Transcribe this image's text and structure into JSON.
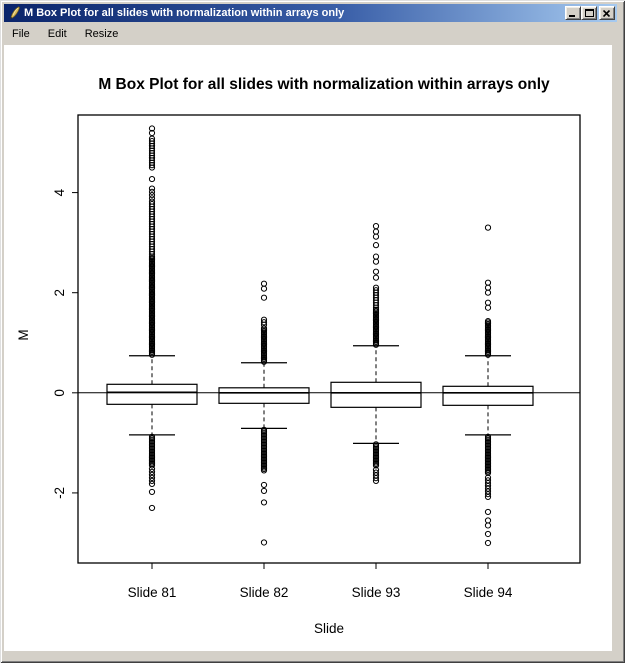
{
  "window": {
    "title": "M Box Plot for all slides with normalization within arrays only",
    "icon": "graphics-pen-icon",
    "controls": {
      "minimize": "minimize",
      "maximize": "maximize",
      "close": "close"
    }
  },
  "menu": {
    "items": [
      {
        "label": "File"
      },
      {
        "label": "Edit"
      },
      {
        "label": "Resize"
      }
    ]
  },
  "chart_data": {
    "type": "boxplot",
    "title": "M Box Plot for all slides with normalization within arrays only",
    "xlabel": "Slide",
    "ylabel": "M",
    "ylim": [
      -3.4,
      5.55
    ],
    "yticks": [
      -2,
      0,
      2,
      4
    ],
    "reference_line_y": 0,
    "grid": false,
    "categories": [
      "Slide 81",
      "Slide 82",
      "Slide 93",
      "Slide 94"
    ],
    "series": [
      {
        "name": "Slide 81",
        "median": 0.01,
        "q1": -0.23,
        "q3": 0.17,
        "whisker_low": -0.84,
        "whisker_high": 0.74,
        "outlier_runs": [
          [
            0.76,
            2.7,
            0.028
          ],
          [
            2.72,
            3.78,
            0.05
          ],
          [
            3.82,
            4.1,
            0.065
          ],
          [
            4.5,
            5.08,
            0.048
          ],
          [
            -1.45,
            -0.86,
            0.03
          ],
          [
            -1.82,
            -1.5,
            0.06
          ]
        ],
        "outliers": [
          4.27,
          5.19,
          5.28,
          -1.98,
          -2.3
        ]
      },
      {
        "name": "Slide 82",
        "median": 0.0,
        "q1": -0.21,
        "q3": 0.1,
        "whisker_low": -0.71,
        "whisker_high": 0.6,
        "outlier_runs": [
          [
            0.62,
            1.3,
            0.028
          ],
          [
            1.36,
            1.46,
            0.05
          ],
          [
            -1.55,
            -0.72,
            0.03
          ]
        ],
        "outliers": [
          1.9,
          2.08,
          2.18,
          -1.84,
          -1.96,
          -2.19,
          -2.99
        ]
      },
      {
        "name": "Slide 93",
        "median": 0.0,
        "q1": -0.29,
        "q3": 0.21,
        "whisker_low": -1.01,
        "whisker_high": 0.94,
        "outlier_runs": [
          [
            0.96,
            1.66,
            0.028
          ],
          [
            1.7,
            2.12,
            0.05
          ],
          [
            -1.45,
            -1.03,
            0.03
          ],
          [
            -1.76,
            -1.5,
            0.055
          ]
        ],
        "outliers": [
          2.3,
          2.42,
          2.62,
          2.72,
          2.95,
          3.12,
          3.22,
          3.33
        ]
      },
      {
        "name": "Slide 94",
        "median": 0.0,
        "q1": -0.25,
        "q3": 0.13,
        "whisker_low": -0.84,
        "whisker_high": 0.74,
        "outlier_runs": [
          [
            0.76,
            1.45,
            0.028
          ],
          [
            -1.6,
            -0.86,
            0.03
          ],
          [
            -2.08,
            -1.65,
            0.055
          ]
        ],
        "outliers": [
          1.7,
          1.8,
          2.0,
          2.1,
          2.2,
          3.3,
          -2.38,
          -2.55,
          -2.65,
          -2.82,
          -3.0
        ]
      }
    ]
  },
  "colors": {
    "titlebar_start": "#0a246a",
    "titlebar_end": "#a6caf0",
    "chrome": "#D4D0C8",
    "plot_ink": "#000000",
    "plot_bg": "#ffffff"
  }
}
